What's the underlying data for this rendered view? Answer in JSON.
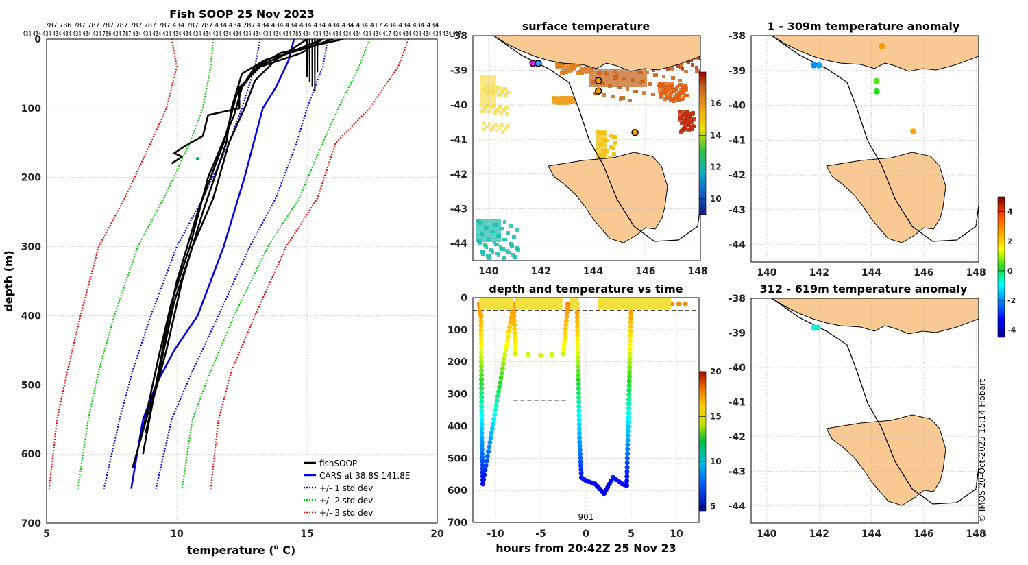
{
  "profile": {
    "title": "Fish SOOP 25 Nov 2023",
    "xlabel_prefix": "temperature (",
    "xlabel_sup": "o",
    "xlabel_suffix": " C)",
    "ylabel": "depth (m)",
    "x_ticks": [
      "5",
      "10",
      "15",
      "20"
    ],
    "y_ticks": [
      "0",
      "100",
      "200",
      "300",
      "400",
      "500",
      "600",
      "700"
    ],
    "id_row1": "787 786 787 787 787 787 787 787 787 434 787 787 434 434 787 434 434 434 434 434 434 434 434 417 434 434 434 434",
    "id_row2": "434 434 434 434 434 434 434 434 786 434 787 434 434 434 434 434 434 434 434 434 434 434 434 434 434 434 434 786 434 434 434 434 434 434 434 434 417 434 434 434 434 434 434 417",
    "legend": [
      "fishSOOP",
      "CARS at 38.8S 141.8E",
      "+/- 1 std dev",
      "+/- 2 std dev",
      "+/- 3 std dev"
    ]
  },
  "sst_map": {
    "title": "surface temperature",
    "x_ticks": [
      "140",
      "142",
      "144",
      "146",
      "148"
    ],
    "y_ticks": [
      "-38",
      "-39",
      "-40",
      "-41",
      "-42",
      "-43",
      "-44"
    ],
    "colorbar_ticks": [
      "10",
      "12",
      "14",
      "16"
    ]
  },
  "time_series": {
    "title": "depth and temperature vs time",
    "xlabel": "hours from 20:42Z 25 Nov 23",
    "x_ticks": [
      "-10",
      "-5",
      "0",
      "5",
      "10"
    ],
    "y_ticks": [
      "0",
      "100",
      "200",
      "300",
      "400",
      "500",
      "600",
      "700"
    ],
    "annotation": "901",
    "colorbar_ticks": [
      "5",
      "10",
      "15",
      "20"
    ]
  },
  "anomaly_map_1": {
    "title": "1 - 309m temperature anomaly",
    "x_ticks": [
      "140",
      "142",
      "144",
      "146",
      "148"
    ],
    "y_ticks": [
      "-38",
      "-39",
      "-40",
      "-41",
      "-42",
      "-43",
      "-44"
    ]
  },
  "anomaly_map_2": {
    "title": "312 - 619m temperature anomaly",
    "x_ticks": [
      "140",
      "142",
      "144",
      "146",
      "148"
    ],
    "y_ticks": [
      "-38",
      "-39",
      "-40",
      "-41",
      "-42",
      "-43",
      "-44"
    ]
  },
  "anomaly_colorbar_ticks": [
    "4",
    "2",
    "0",
    "-2",
    "-4"
  ],
  "credit": "© IMOS 20-Oct-2025 15:14 Hobart",
  "chart_data": [
    {
      "type": "line",
      "title": "Fish SOOP 25 Nov 2023",
      "xlabel": "temperature (o C)",
      "ylabel": "depth (m)",
      "xlim": [
        5,
        20
      ],
      "ylim": [
        700,
        0
      ],
      "series": [
        {
          "name": "CARS at 38.8S 141.8E",
          "color": "#0000ee",
          "x": [
            14.5,
            14.3,
            13.8,
            13.3,
            12.6,
            11.8,
            10.8,
            9.9,
            9.2,
            8.7,
            8.25
          ],
          "y": [
            0,
            30,
            70,
            100,
            200,
            300,
            400,
            450,
            500,
            550,
            650
          ]
        },
        {
          "name": "+/- 1 std dev (low)",
          "color": "#0000ee",
          "x": [
            13.2,
            13.0,
            12.5,
            12.0,
            11.0,
            10.0,
            9.0,
            8.3,
            7.8,
            7.2
          ],
          "y": [
            0,
            40,
            100,
            150,
            230,
            300,
            400,
            480,
            550,
            650
          ]
        },
        {
          "name": "+/- 1 std dev (high)",
          "color": "#0000ee",
          "x": [
            15.8,
            15.6,
            15.0,
            14.6,
            13.8,
            12.8,
            11.6,
            10.6,
            9.8,
            9.2
          ],
          "y": [
            0,
            40,
            100,
            150,
            230,
            300,
            400,
            480,
            550,
            650
          ]
        },
        {
          "name": "+/- 2 std dev (low)",
          "color": "#00cc00",
          "x": [
            11.4,
            11.3,
            11.0,
            10.5,
            9.5,
            8.5,
            7.6,
            7.0,
            6.6,
            6.2
          ],
          "y": [
            0,
            40,
            100,
            150,
            230,
            300,
            400,
            480,
            550,
            650
          ]
        },
        {
          "name": "+/- 2 std dev (high)",
          "color": "#00cc00",
          "x": [
            17.4,
            17.0,
            16.2,
            15.6,
            14.7,
            13.5,
            12.2,
            11.3,
            10.6,
            10.2
          ],
          "y": [
            0,
            40,
            100,
            150,
            230,
            300,
            400,
            480,
            550,
            650
          ]
        },
        {
          "name": "+/- 3 std dev (low)",
          "color": "#ee0000",
          "x": [
            9.8,
            10.0,
            9.6,
            9.0,
            8.0,
            7.0,
            6.3,
            5.8,
            5.4,
            5.1
          ],
          "y": [
            0,
            40,
            100,
            150,
            230,
            300,
            400,
            480,
            550,
            650
          ]
        },
        {
          "name": "+/- 3 std dev (high)",
          "color": "#ee0000",
          "x": [
            18.9,
            18.5,
            17.4,
            16.1,
            15.4,
            14.2,
            13.0,
            12.1,
            11.6,
            11.3
          ],
          "y": [
            0,
            40,
            100,
            150,
            230,
            300,
            400,
            480,
            550,
            650
          ]
        },
        {
          "name": "fishSOOP cast 1",
          "color": "#000000",
          "x": [
            16.4,
            15.2,
            14.0,
            13.0,
            12.3,
            11.8,
            10.8,
            10.0,
            9.6,
            9.2,
            8.6,
            8.3
          ],
          "y": [
            0,
            10,
            20,
            40,
            80,
            150,
            250,
            350,
            420,
            500,
            580,
            620
          ]
        },
        {
          "name": "fishSOOP cast 2",
          "color": "#000000",
          "x": [
            16.0,
            14.8,
            13.4,
            12.5,
            12.1,
            11.9,
            11.0,
            10.2,
            9.6,
            9.1,
            8.8
          ],
          "y": [
            0,
            15,
            30,
            50,
            100,
            150,
            250,
            350,
            450,
            520,
            570
          ]
        },
        {
          "name": "fishSOOP cast 3",
          "color": "#000000",
          "x": [
            15.6,
            14.3,
            13.1,
            12.5,
            12.2,
            11.2,
            10.5,
            9.8,
            9.3,
            8.9,
            8.6
          ],
          "y": [
            0,
            20,
            40,
            70,
            110,
            200,
            300,
            380,
            460,
            530,
            580
          ]
        },
        {
          "name": "fishSOOP cast 4",
          "color": "#000000",
          "x": [
            15.0,
            13.8,
            13.0,
            12.6,
            12.0,
            11.4,
            10.6,
            9.9,
            9.5,
            9.1,
            8.7
          ],
          "y": [
            0,
            30,
            60,
            100,
            150,
            230,
            300,
            380,
            450,
            520,
            600
          ]
        },
        {
          "name": "fishSOOP cast 5",
          "color": "#000000",
          "x": [
            15.6,
            14.8,
            13.2,
            12.4,
            12.4,
            11.2,
            11.0,
            10.3,
            9.9,
            10.2,
            9.8
          ],
          "y": [
            0,
            20,
            40,
            70,
            100,
            110,
            140,
            155,
            165,
            170,
            180
          ]
        }
      ]
    },
    {
      "type": "heatmap",
      "title": "surface temperature",
      "xlim": [
        139.4,
        148.1
      ],
      "ylim": [
        -44.5,
        -38
      ],
      "colorbar": {
        "min": 9,
        "max": 18,
        "ticks": [
          10,
          12,
          14,
          16
        ]
      },
      "profile_locations": [
        {
          "lon": 141.7,
          "lat": -38.8
        },
        {
          "lon": 141.9,
          "lat": -38.8
        },
        {
          "lon": 144.2,
          "lat": -39.3
        },
        {
          "lon": 144.2,
          "lat": -39.6
        },
        {
          "lon": 145.6,
          "lat": -40.8
        }
      ]
    },
    {
      "type": "scatter",
      "title": "depth and temperature vs time",
      "xlabel": "hours from 20:42Z 25 Nov 23",
      "xlim": [
        -12.5,
        12.5
      ],
      "ylim": [
        700,
        0
      ],
      "colorbar": {
        "min": 4.5,
        "max": 20,
        "ticks": [
          5,
          10,
          15,
          20
        ]
      },
      "reference_lines": [
        {
          "depth": 40,
          "style": "dashed"
        },
        {
          "depth": 320,
          "x_from": -8,
          "x_to": -2,
          "style": "dashed"
        }
      ],
      "x": [
        -11.8,
        -11.6,
        -11.5,
        -11.4,
        -8,
        -7.8,
        -5,
        -2.5,
        -2,
        -1,
        -0.7,
        -0.5,
        0,
        1,
        2,
        3,
        4,
        4.5,
        5,
        9.5,
        11
      ],
      "depth": [
        20,
        60,
        450,
        580,
        20,
        175,
        180,
        175,
        20,
        20,
        450,
        560,
        570,
        580,
        610,
        560,
        580,
        585,
        20,
        20,
        20
      ]
    },
    {
      "type": "scatter",
      "title": "1 - 309m temperature anomaly",
      "xlim": [
        139.4,
        148.1
      ],
      "ylim": [
        -44.5,
        -38
      ],
      "colorbar": {
        "min": -4.5,
        "max": 5,
        "ticks": [
          -4,
          -2,
          0,
          2,
          4
        ]
      },
      "points": [
        {
          "lon": 141.8,
          "lat": -38.85,
          "anomaly": -2
        },
        {
          "lon": 142.0,
          "lat": -38.85,
          "anomaly": -1.8
        },
        {
          "lon": 144.4,
          "lat": -38.3,
          "anomaly": 2.8
        },
        {
          "lon": 144.2,
          "lat": -39.3,
          "anomaly": 0.5
        },
        {
          "lon": 144.2,
          "lat": -39.6,
          "anomaly": 0.3
        },
        {
          "lon": 145.6,
          "lat": -40.75,
          "anomaly": 2.6
        }
      ]
    },
    {
      "type": "scatter",
      "title": "312 - 619m temperature anomaly",
      "xlim": [
        139.4,
        148.1
      ],
      "ylim": [
        -44.5,
        -38
      ],
      "colorbar": {
        "min": -4.5,
        "max": 5,
        "ticks": [
          -4,
          -2,
          0,
          2,
          4
        ]
      },
      "points": [
        {
          "lon": 141.8,
          "lat": -38.85,
          "anomaly": -0.8
        },
        {
          "lon": 141.95,
          "lat": -38.85,
          "anomaly": -0.6
        }
      ]
    }
  ]
}
